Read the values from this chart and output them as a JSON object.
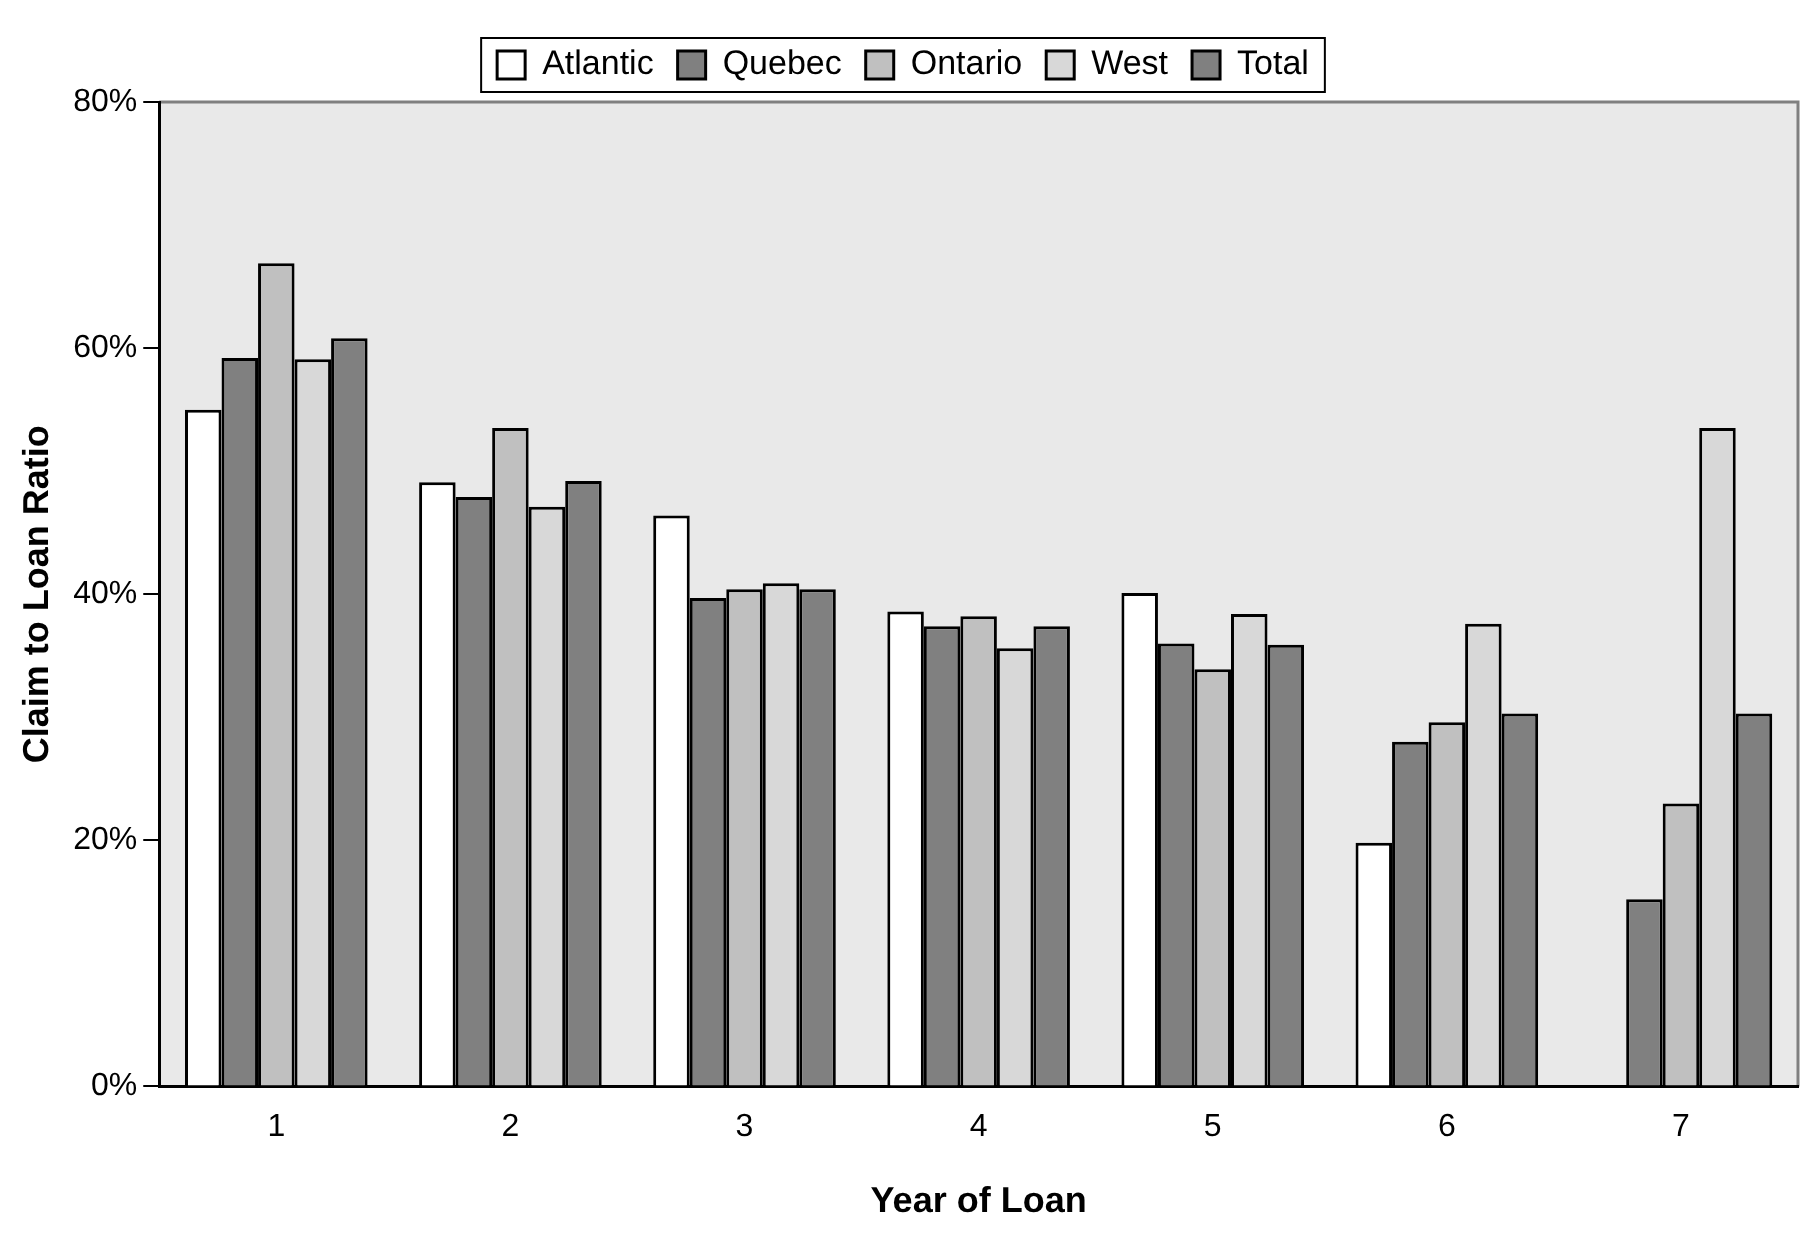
{
  "chart_data": {
    "type": "bar",
    "xlabel": "Year of Loan",
    "ylabel": "Claim to Loan Ratio",
    "categories": [
      "1",
      "2",
      "3",
      "4",
      "5",
      "6",
      "7"
    ],
    "series": [
      {
        "name": "Atlantic",
        "color": "#ffffff",
        "values": [
          55.0,
          49.1,
          46.4,
          38.6,
          40.1,
          19.8,
          null
        ]
      },
      {
        "name": "Quebec",
        "color": "#808080",
        "values": [
          59.2,
          47.9,
          39.7,
          37.4,
          36.0,
          28.0,
          15.2
        ]
      },
      {
        "name": "Ontario",
        "color": "#c0c0c0",
        "values": [
          66.9,
          53.5,
          40.4,
          38.2,
          33.9,
          29.6,
          23.0
        ]
      },
      {
        "name": "West",
        "color": "#d8d8d8",
        "values": [
          59.1,
          47.1,
          40.9,
          35.6,
          38.4,
          37.6,
          53.5
        ]
      },
      {
        "name": "Total",
        "color": "#808080",
        "values": [
          60.8,
          49.2,
          40.4,
          37.4,
          35.9,
          30.3,
          30.3
        ]
      }
    ],
    "ylim": [
      0,
      80
    ],
    "yticks": [
      {
        "value": 0,
        "label": "0%"
      },
      {
        "value": 20,
        "label": "20%"
      },
      {
        "value": 40,
        "label": "40%"
      },
      {
        "value": 60,
        "label": "60%"
      },
      {
        "value": 80,
        "label": "80%"
      }
    ],
    "grid": false,
    "legend": "top"
  }
}
